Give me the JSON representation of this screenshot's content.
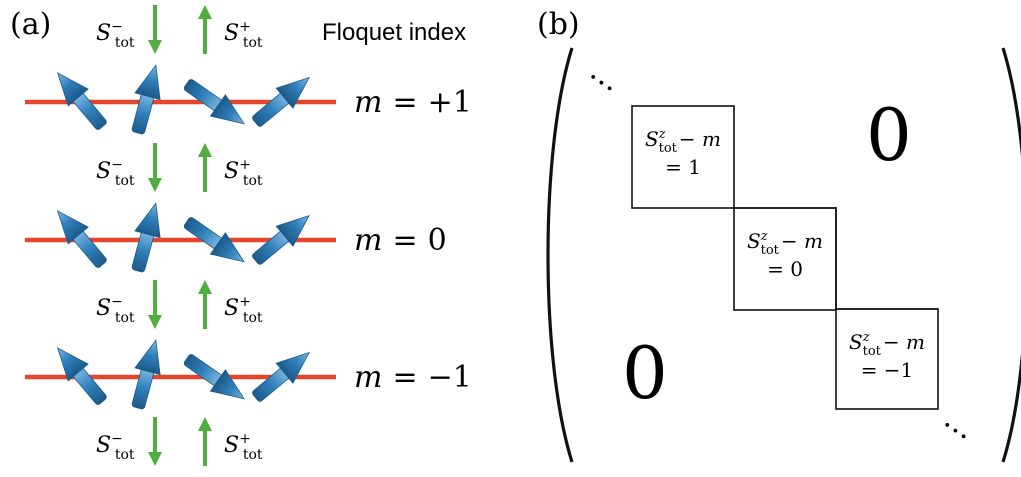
{
  "panel_a": {
    "label": "(a)",
    "column_title": "Floquet index",
    "lowering_op": {
      "base": "S",
      "sup": "−",
      "sub": "tot"
    },
    "raising_op": {
      "base": "S",
      "sup": "+",
      "sub": "tot"
    },
    "levels": [
      {
        "var": "m",
        "eq": "=",
        "val": "+1"
      },
      {
        "var": "m",
        "eq": "=",
        "val": "0"
      },
      {
        "var": "m",
        "eq": "=",
        "val": "−1"
      }
    ],
    "colors": {
      "line": "#e5452b",
      "arrow": "#4fae3f",
      "spin": "#2f7fba"
    }
  },
  "panel_b": {
    "label": "(b)",
    "dots": "…",
    "zero": "0",
    "blocks": [
      {
        "op": "S",
        "sup": "z",
        "sub": "tot",
        "minus": "− m",
        "eq": "= 1"
      },
      {
        "op": "S",
        "sup": "z",
        "sub": "tot",
        "minus": "− m",
        "eq": "= 0"
      },
      {
        "op": "S",
        "sup": "z",
        "sub": "tot",
        "minus": "− m",
        "eq": "= −1"
      }
    ]
  }
}
